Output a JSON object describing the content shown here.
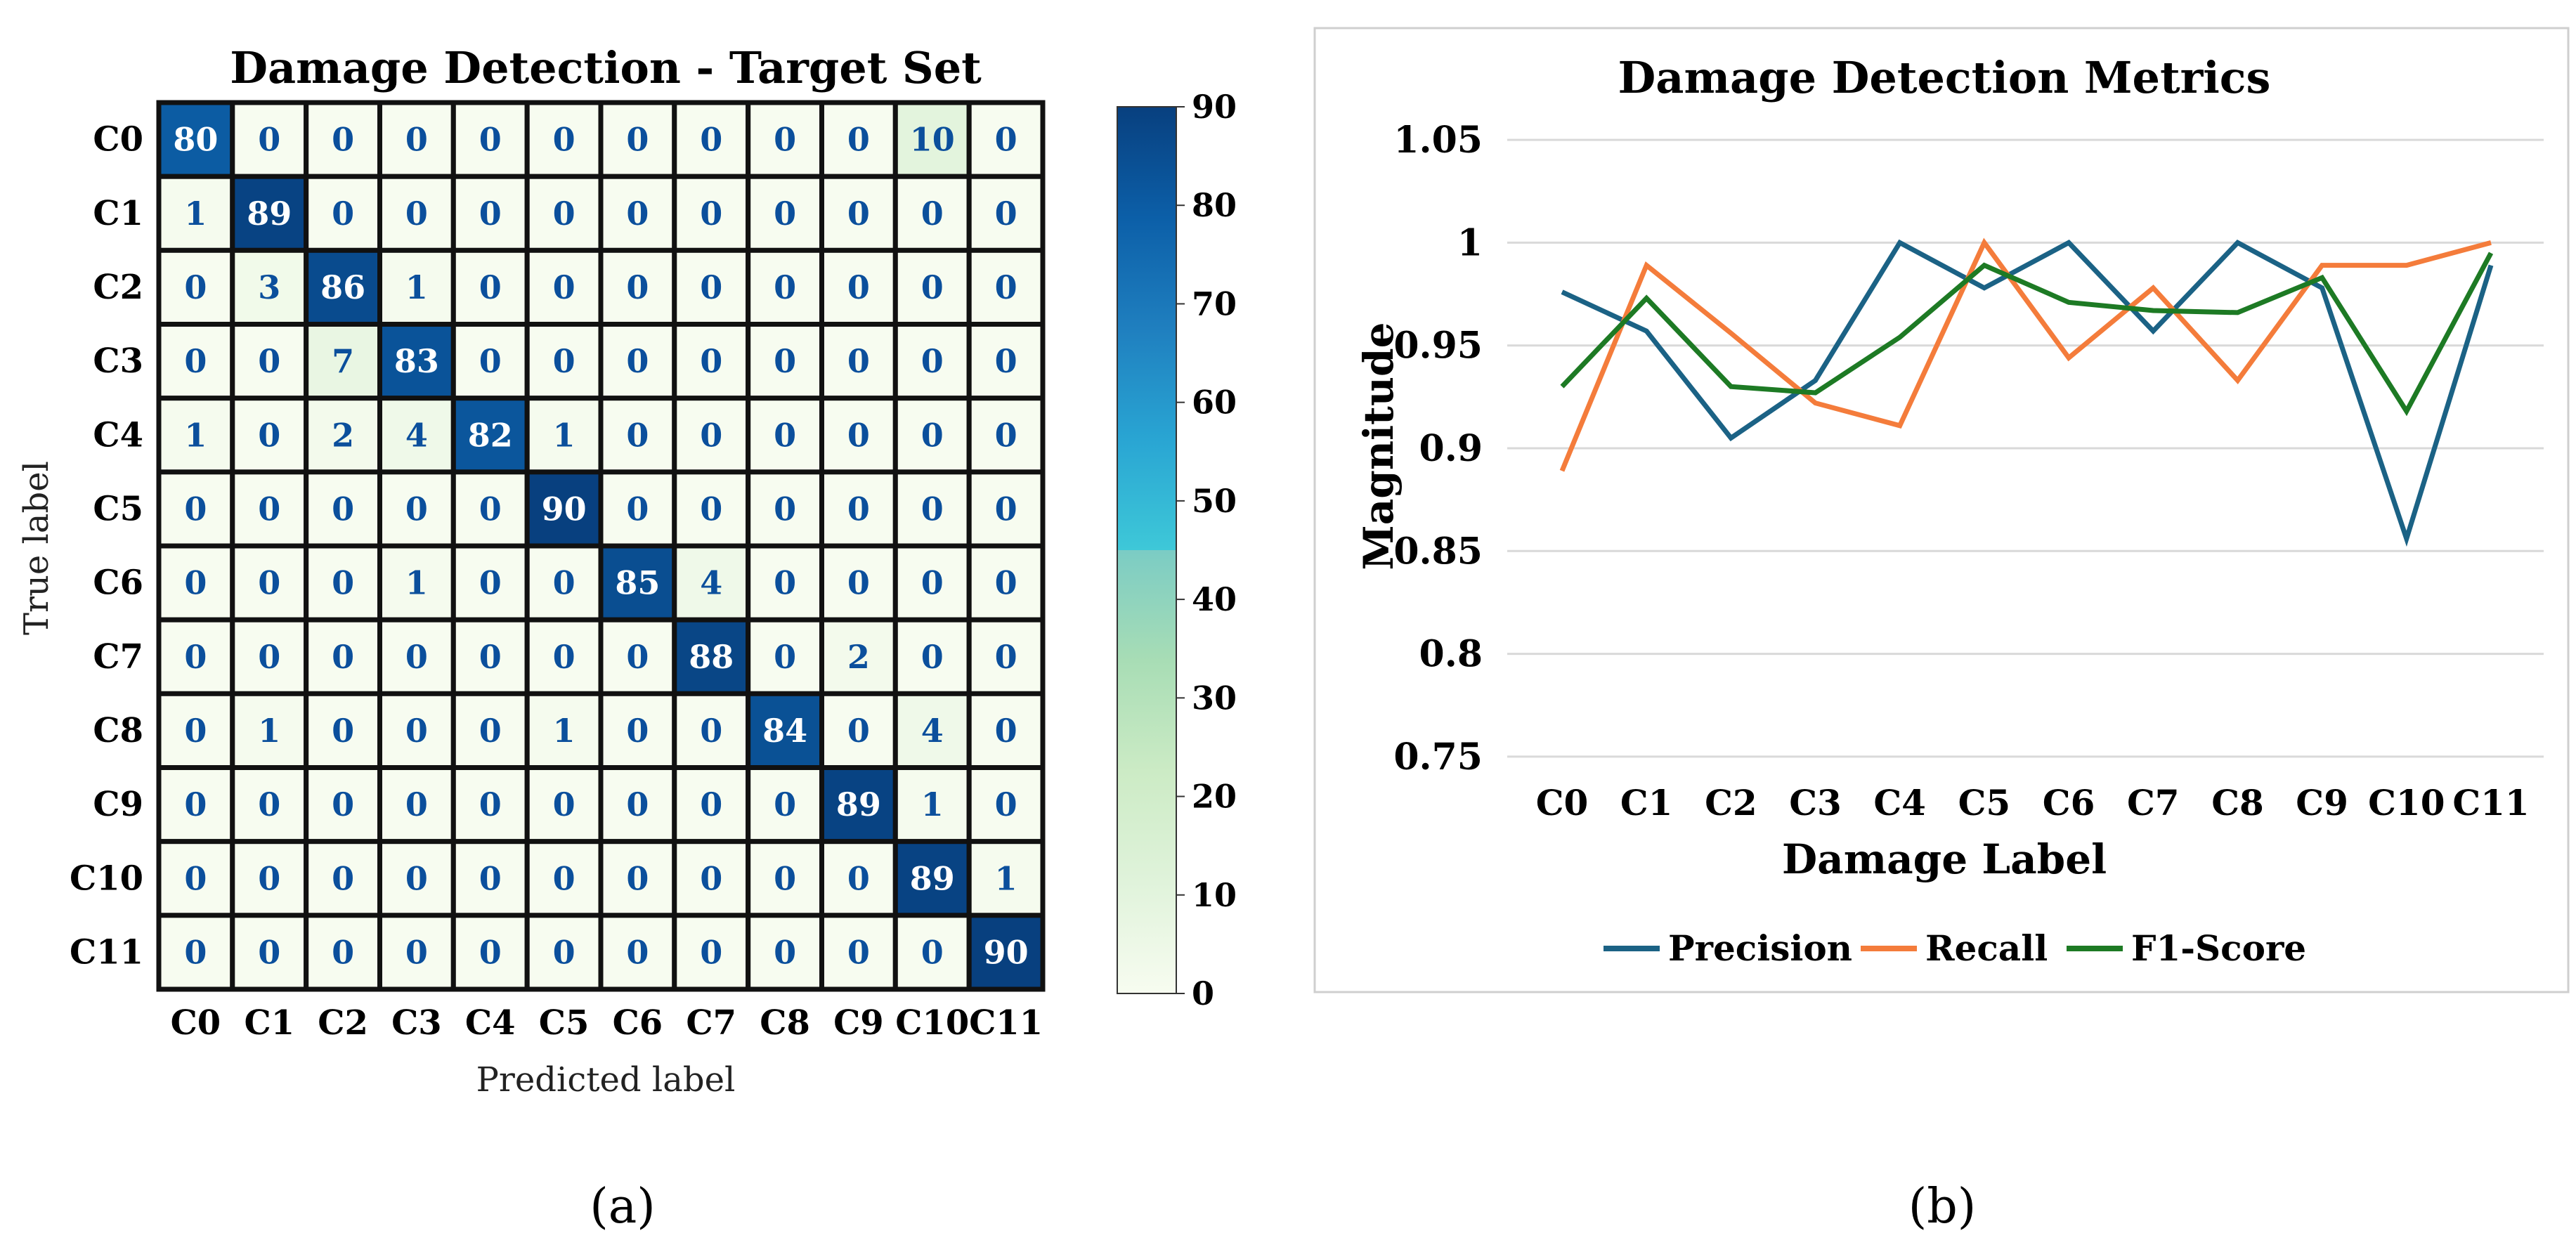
{
  "panel_labels": {
    "a": "(a)",
    "b": "(b)"
  },
  "colors": {
    "precision": "#1b6285",
    "recall": "#f47c3b",
    "f1": "#1d7a24",
    "grid": "#d9d9d9",
    "cell_border": "#111111",
    "text_dark": "#0b4f9c",
    "text_light": "#ffffff"
  },
  "chart_data": [
    {
      "type": "heatmap",
      "title": "Damage Detection - Target Set",
      "xlabel": "Predicted label",
      "ylabel": "True label",
      "x_categories": [
        "C0",
        "C1",
        "C2",
        "C3",
        "C4",
        "C5",
        "C6",
        "C7",
        "C8",
        "C9",
        "C10",
        "C11"
      ],
      "y_categories": [
        "C0",
        "C1",
        "C2",
        "C3",
        "C4",
        "C5",
        "C6",
        "C7",
        "C8",
        "C9",
        "C10",
        "C11"
      ],
      "values": [
        [
          80,
          0,
          0,
          0,
          0,
          0,
          0,
          0,
          0,
          0,
          10,
          0
        ],
        [
          1,
          89,
          0,
          0,
          0,
          0,
          0,
          0,
          0,
          0,
          0,
          0
        ],
        [
          0,
          3,
          86,
          1,
          0,
          0,
          0,
          0,
          0,
          0,
          0,
          0
        ],
        [
          0,
          0,
          7,
          83,
          0,
          0,
          0,
          0,
          0,
          0,
          0,
          0
        ],
        [
          1,
          0,
          2,
          4,
          82,
          1,
          0,
          0,
          0,
          0,
          0,
          0
        ],
        [
          0,
          0,
          0,
          0,
          0,
          90,
          0,
          0,
          0,
          0,
          0,
          0
        ],
        [
          0,
          0,
          0,
          1,
          0,
          0,
          85,
          4,
          0,
          0,
          0,
          0
        ],
        [
          0,
          0,
          0,
          0,
          0,
          0,
          0,
          88,
          0,
          2,
          0,
          0
        ],
        [
          0,
          1,
          0,
          0,
          0,
          1,
          0,
          0,
          84,
          0,
          4,
          0
        ],
        [
          0,
          0,
          0,
          0,
          0,
          0,
          0,
          0,
          0,
          89,
          1,
          0
        ],
        [
          0,
          0,
          0,
          0,
          0,
          0,
          0,
          0,
          0,
          0,
          89,
          1
        ],
        [
          0,
          0,
          0,
          0,
          0,
          0,
          0,
          0,
          0,
          0,
          0,
          90
        ]
      ],
      "colorbar": {
        "min": 0,
        "max": 90,
        "ticks": [
          0,
          10,
          20,
          30,
          40,
          50,
          60,
          70,
          80,
          90
        ],
        "colormap": "GnBu"
      }
    },
    {
      "type": "line",
      "title": "Damage Detection Metrics",
      "xlabel": "Damage Label",
      "ylabel": "Magnitude",
      "categories": [
        "C0",
        "C1",
        "C2",
        "C3",
        "C4",
        "C5",
        "C6",
        "C7",
        "C8",
        "C9",
        "C10",
        "C11"
      ],
      "ylim": [
        0.725,
        1.075
      ],
      "yticks": [
        0.75,
        0.8,
        0.85,
        0.9,
        0.95,
        1,
        1.05
      ],
      "ytick_labels": [
        "0.75",
        "0.8",
        "0.85",
        "0.9",
        "0.95",
        "1",
        "1.05"
      ],
      "grid": "horizontal",
      "legend": "bottom-center",
      "series": [
        {
          "name": "Precision",
          "values": [
            0.976,
            0.957,
            0.905,
            0.933,
            1.0,
            0.978,
            1.0,
            0.957,
            1.0,
            0.978,
            0.856,
            0.989
          ]
        },
        {
          "name": "Recall",
          "values": [
            0.889,
            0.989,
            0.956,
            0.922,
            0.911,
            1.0,
            0.944,
            0.978,
            0.933,
            0.989,
            0.989,
            1.0
          ]
        },
        {
          "name": "F1-Score",
          "values": [
            0.93,
            0.973,
            0.93,
            0.927,
            0.954,
            0.989,
            0.971,
            0.967,
            0.966,
            0.983,
            0.918,
            0.995
          ]
        }
      ]
    }
  ]
}
